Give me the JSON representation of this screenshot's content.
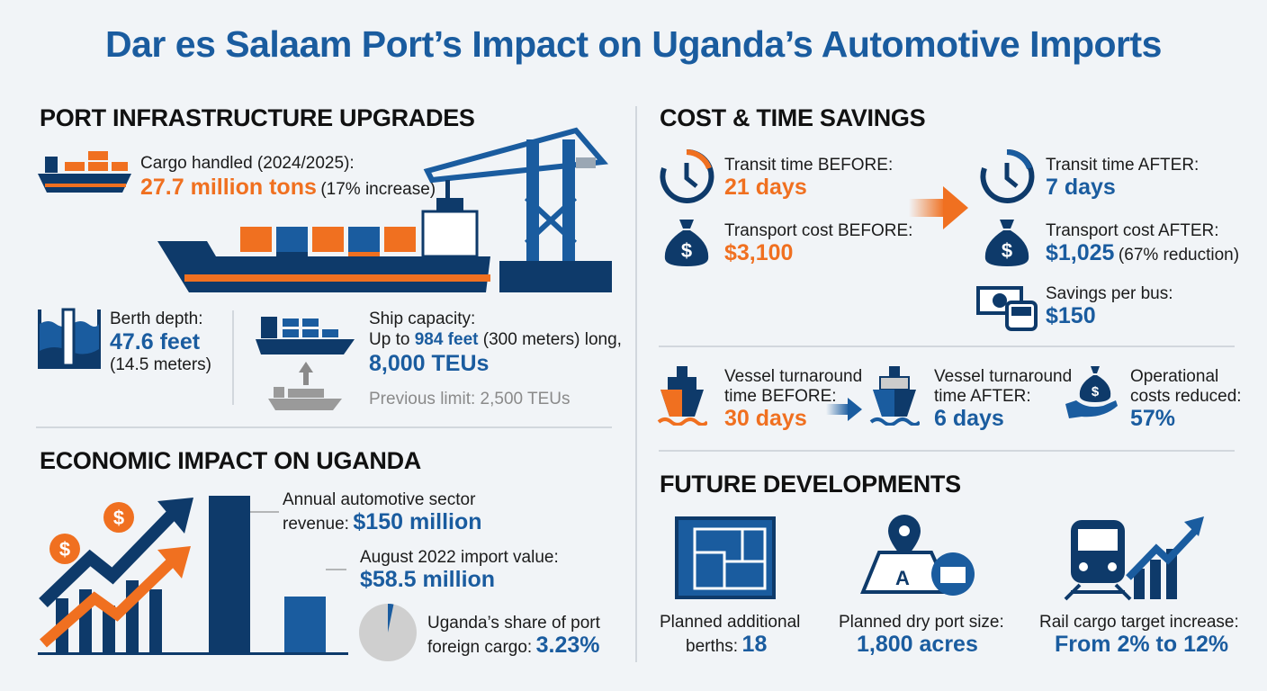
{
  "title": "Dar es Salaam Port’s Impact on Uganda’s Automotive Imports",
  "colors": {
    "dark_blue": "#0e3a6a",
    "blue": "#1a5c9f",
    "orange": "#f07020",
    "background": "#f1f4f7"
  },
  "infrastructure": {
    "heading": "PORT INFRASTRUCTURE UPGRADES",
    "cargo_label": "Cargo handled (2024/2025):",
    "cargo_value": "27.7 million tons",
    "cargo_note": "(17% increase)",
    "berth_label": "Berth depth:",
    "berth_value": "47.6 feet",
    "berth_note": "(14.5 meters)",
    "ship_label": "Ship capacity:",
    "ship_prefix": "Up to",
    "ship_length": "984 feet",
    "ship_length_note": "(300 meters) long,",
    "ship_teu": "8,000 TEUs",
    "previous_limit": "Previous limit: 2,500 TEUs"
  },
  "economic": {
    "heading": "ECONOMIC IMPACT ON UGANDA",
    "revenue_label1": "Annual automotive sector",
    "revenue_label2": "revenue:",
    "revenue_value": "$150 million",
    "import_label": "August 2022 import value:",
    "import_value": "$58.5 million",
    "share_label1": "Uganda’s share of port",
    "share_label2": "foreign cargo:",
    "share_value": "3.23%",
    "share_percent": 3.23
  },
  "savings": {
    "heading": "COST & TIME SAVINGS",
    "transit_before_label": "Transit time BEFORE:",
    "transit_before_value": "21 days",
    "cost_before_label": "Transport cost BEFORE:",
    "cost_before_value": "$3,100",
    "transit_after_label": "Transit time AFTER:",
    "transit_after_value": "7 days",
    "cost_after_label": "Transport cost AFTER:",
    "cost_after_value": "$1,025",
    "cost_after_note": "(67% reduction)",
    "bus_label": "Savings per bus:",
    "bus_value": "$150",
    "turn_before_label1": "Vessel turnaround",
    "turn_before_label2": "time BEFORE:",
    "turn_before_value": "30 days",
    "turn_after_label1": "Vessel turnaround",
    "turn_after_label2": "time AFTER:",
    "turn_after_value": "6 days",
    "ops_label1": "Operational",
    "ops_label2": "costs reduced:",
    "ops_value": "57%"
  },
  "future": {
    "heading": "FUTURE DEVELOPMENTS",
    "berths_label1": "Planned additional",
    "berths_label2": "berths:",
    "berths_value": "18",
    "dryport_label": "Planned dry port size:",
    "dryport_value": "1,800 acres",
    "rail_label": "Rail cargo target increase:",
    "rail_value": "From 2% to 12%"
  }
}
